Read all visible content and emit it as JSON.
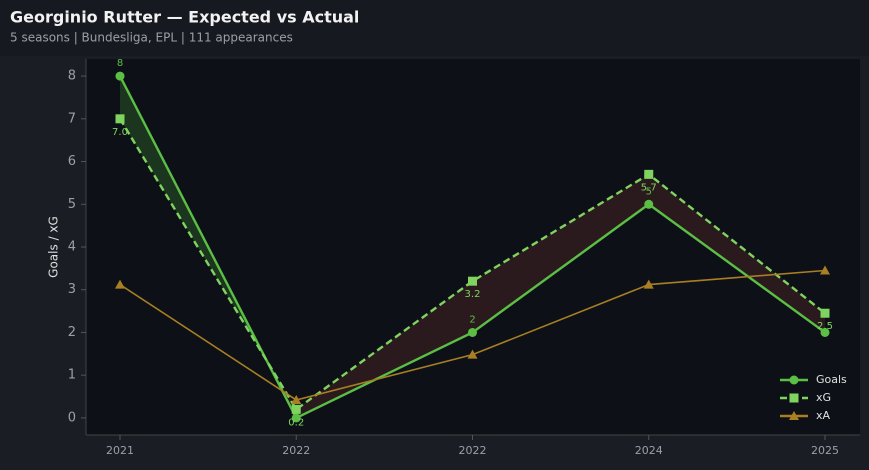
{
  "chart_data": {
    "type": "line",
    "title": "Georginio Rutter — Expected vs Actual",
    "subtitle": "5 seasons | Bundesliga, EPL | 111 appearances",
    "y_label": "Goals / xG",
    "categories": [
      "2021",
      "2022",
      "2022",
      "2024",
      "2025"
    ],
    "ylim": [
      -0.4,
      8.4
    ],
    "yticks": [
      0,
      1,
      2,
      3,
      4,
      5,
      6,
      7,
      8
    ],
    "legend": "lower right",
    "series": [
      {
        "name": "Goals",
        "color": "#5bbf45",
        "marker": "circle",
        "dash": false,
        "values": [
          8,
          0,
          2,
          5,
          2
        ],
        "value_labels": [
          "8",
          null,
          "2",
          "5",
          null
        ]
      },
      {
        "name": "xG",
        "color": "#7fd35f",
        "marker": "square",
        "dash": true,
        "values": [
          7.0,
          0.2,
          3.2,
          5.7,
          2.45
        ],
        "value_labels": [
          "7.0",
          "0.2",
          "3.2",
          "5.7",
          "2.5"
        ]
      },
      {
        "name": "xA",
        "color": "#a87f22",
        "marker": "triangle",
        "dash": false,
        "values": [
          3.12,
          0.42,
          1.48,
          3.12,
          3.45
        ]
      }
    ]
  }
}
